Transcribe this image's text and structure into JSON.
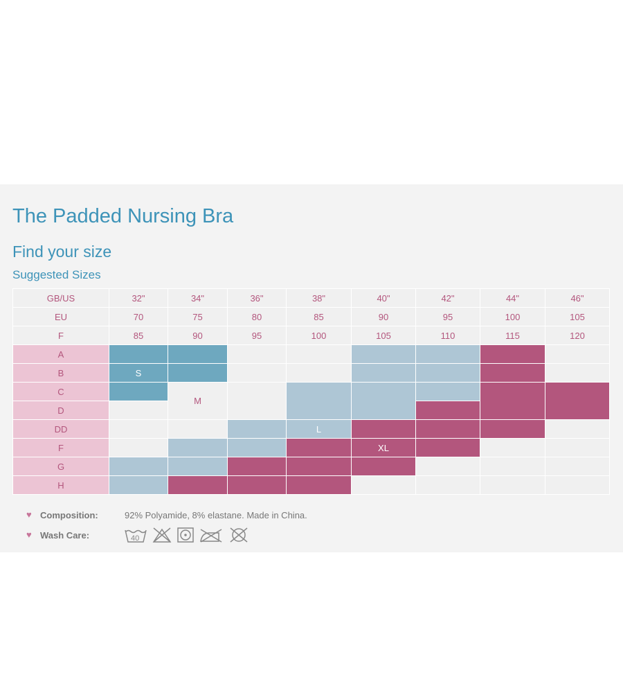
{
  "title": "The Padded Nursing Bra",
  "subtitle": "Find your size",
  "section": "Suggested Sizes",
  "colors": {
    "teal": "#6ea8bf",
    "light": "#aec6d5",
    "magenta": "#b3567d",
    "empty": "#f0f0f0",
    "label": "#ecc4d4",
    "accent": "#3d93b8"
  },
  "header_rows": [
    {
      "label": "GB/US",
      "values": [
        "32\"",
        "34\"",
        "36\"",
        "38\"",
        "40\"",
        "42\"",
        "44\"",
        "46\""
      ]
    },
    {
      "label": "EU",
      "values": [
        "70",
        "75",
        "80",
        "85",
        "90",
        "95",
        "100",
        "105"
      ]
    },
    {
      "label": "F",
      "values": [
        "85",
        "90",
        "95",
        "100",
        "105",
        "110",
        "115",
        "120"
      ]
    }
  ],
  "cup_rows": [
    {
      "label": "A",
      "cells": [
        {
          "fill": "teal"
        },
        {
          "fill": "teal"
        },
        {
          "fill": "empty"
        },
        {
          "fill": "empty"
        },
        {
          "fill": "light"
        },
        {
          "fill": "light"
        },
        {
          "fill": "magenta"
        },
        {
          "fill": "empty"
        }
      ]
    },
    {
      "label": "B",
      "cells": [
        {
          "fill": "teal",
          "text": "S"
        },
        {
          "fill": "teal"
        },
        {
          "fill": "empty"
        },
        {
          "fill": "empty"
        },
        {
          "fill": "light"
        },
        {
          "fill": "light"
        },
        {
          "fill": "magenta"
        },
        {
          "fill": "empty"
        }
      ]
    },
    {
      "label": "C",
      "cells": [
        {
          "fill": "teal"
        },
        {
          "fill": "empty",
          "text": "M",
          "rowspan": 2
        },
        {
          "fill": "empty",
          "rowspan": 2
        },
        {
          "fill": "light",
          "rowspan": 2
        },
        {
          "fill": "light",
          "rowspan": 2
        },
        {
          "fill": "light"
        },
        {
          "fill": "magenta",
          "rowspan": 2
        },
        {
          "fill": "magenta",
          "rowspan": 2
        }
      ]
    },
    {
      "label": "D",
      "cells": [
        {
          "fill": "empty"
        },
        {
          "fill": "magenta"
        }
      ]
    },
    {
      "label": "DD",
      "cells": [
        {
          "fill": "empty"
        },
        {
          "fill": "empty"
        },
        {
          "fill": "light"
        },
        {
          "fill": "light",
          "text": "L"
        },
        {
          "fill": "magenta"
        },
        {
          "fill": "magenta"
        },
        {
          "fill": "magenta"
        },
        {
          "fill": "empty"
        }
      ]
    },
    {
      "label": "F",
      "cells": [
        {
          "fill": "empty"
        },
        {
          "fill": "light"
        },
        {
          "fill": "light"
        },
        {
          "fill": "magenta"
        },
        {
          "fill": "magenta",
          "text": "XL"
        },
        {
          "fill": "magenta"
        },
        {
          "fill": "empty"
        },
        {
          "fill": "empty"
        }
      ]
    },
    {
      "label": "G",
      "cells": [
        {
          "fill": "light"
        },
        {
          "fill": "light"
        },
        {
          "fill": "magenta"
        },
        {
          "fill": "magenta"
        },
        {
          "fill": "magenta"
        },
        {
          "fill": "empty"
        },
        {
          "fill": "empty"
        },
        {
          "fill": "empty"
        }
      ]
    },
    {
      "label": "H",
      "cells": [
        {
          "fill": "light"
        },
        {
          "fill": "magenta"
        },
        {
          "fill": "magenta"
        },
        {
          "fill": "magenta"
        },
        {
          "fill": "empty"
        },
        {
          "fill": "empty"
        },
        {
          "fill": "empty"
        },
        {
          "fill": "empty"
        }
      ]
    }
  ],
  "composition": {
    "label": "Composition:",
    "value": "92% Polyamide, 8% elastane. Made in China."
  },
  "wash_care": {
    "label": "Wash Care:",
    "wash_temp": "40",
    "icons": [
      "wash-40-icon",
      "no-bleach-icon",
      "tumble-dry-icon",
      "no-iron-icon",
      "no-dry-clean-icon"
    ]
  }
}
